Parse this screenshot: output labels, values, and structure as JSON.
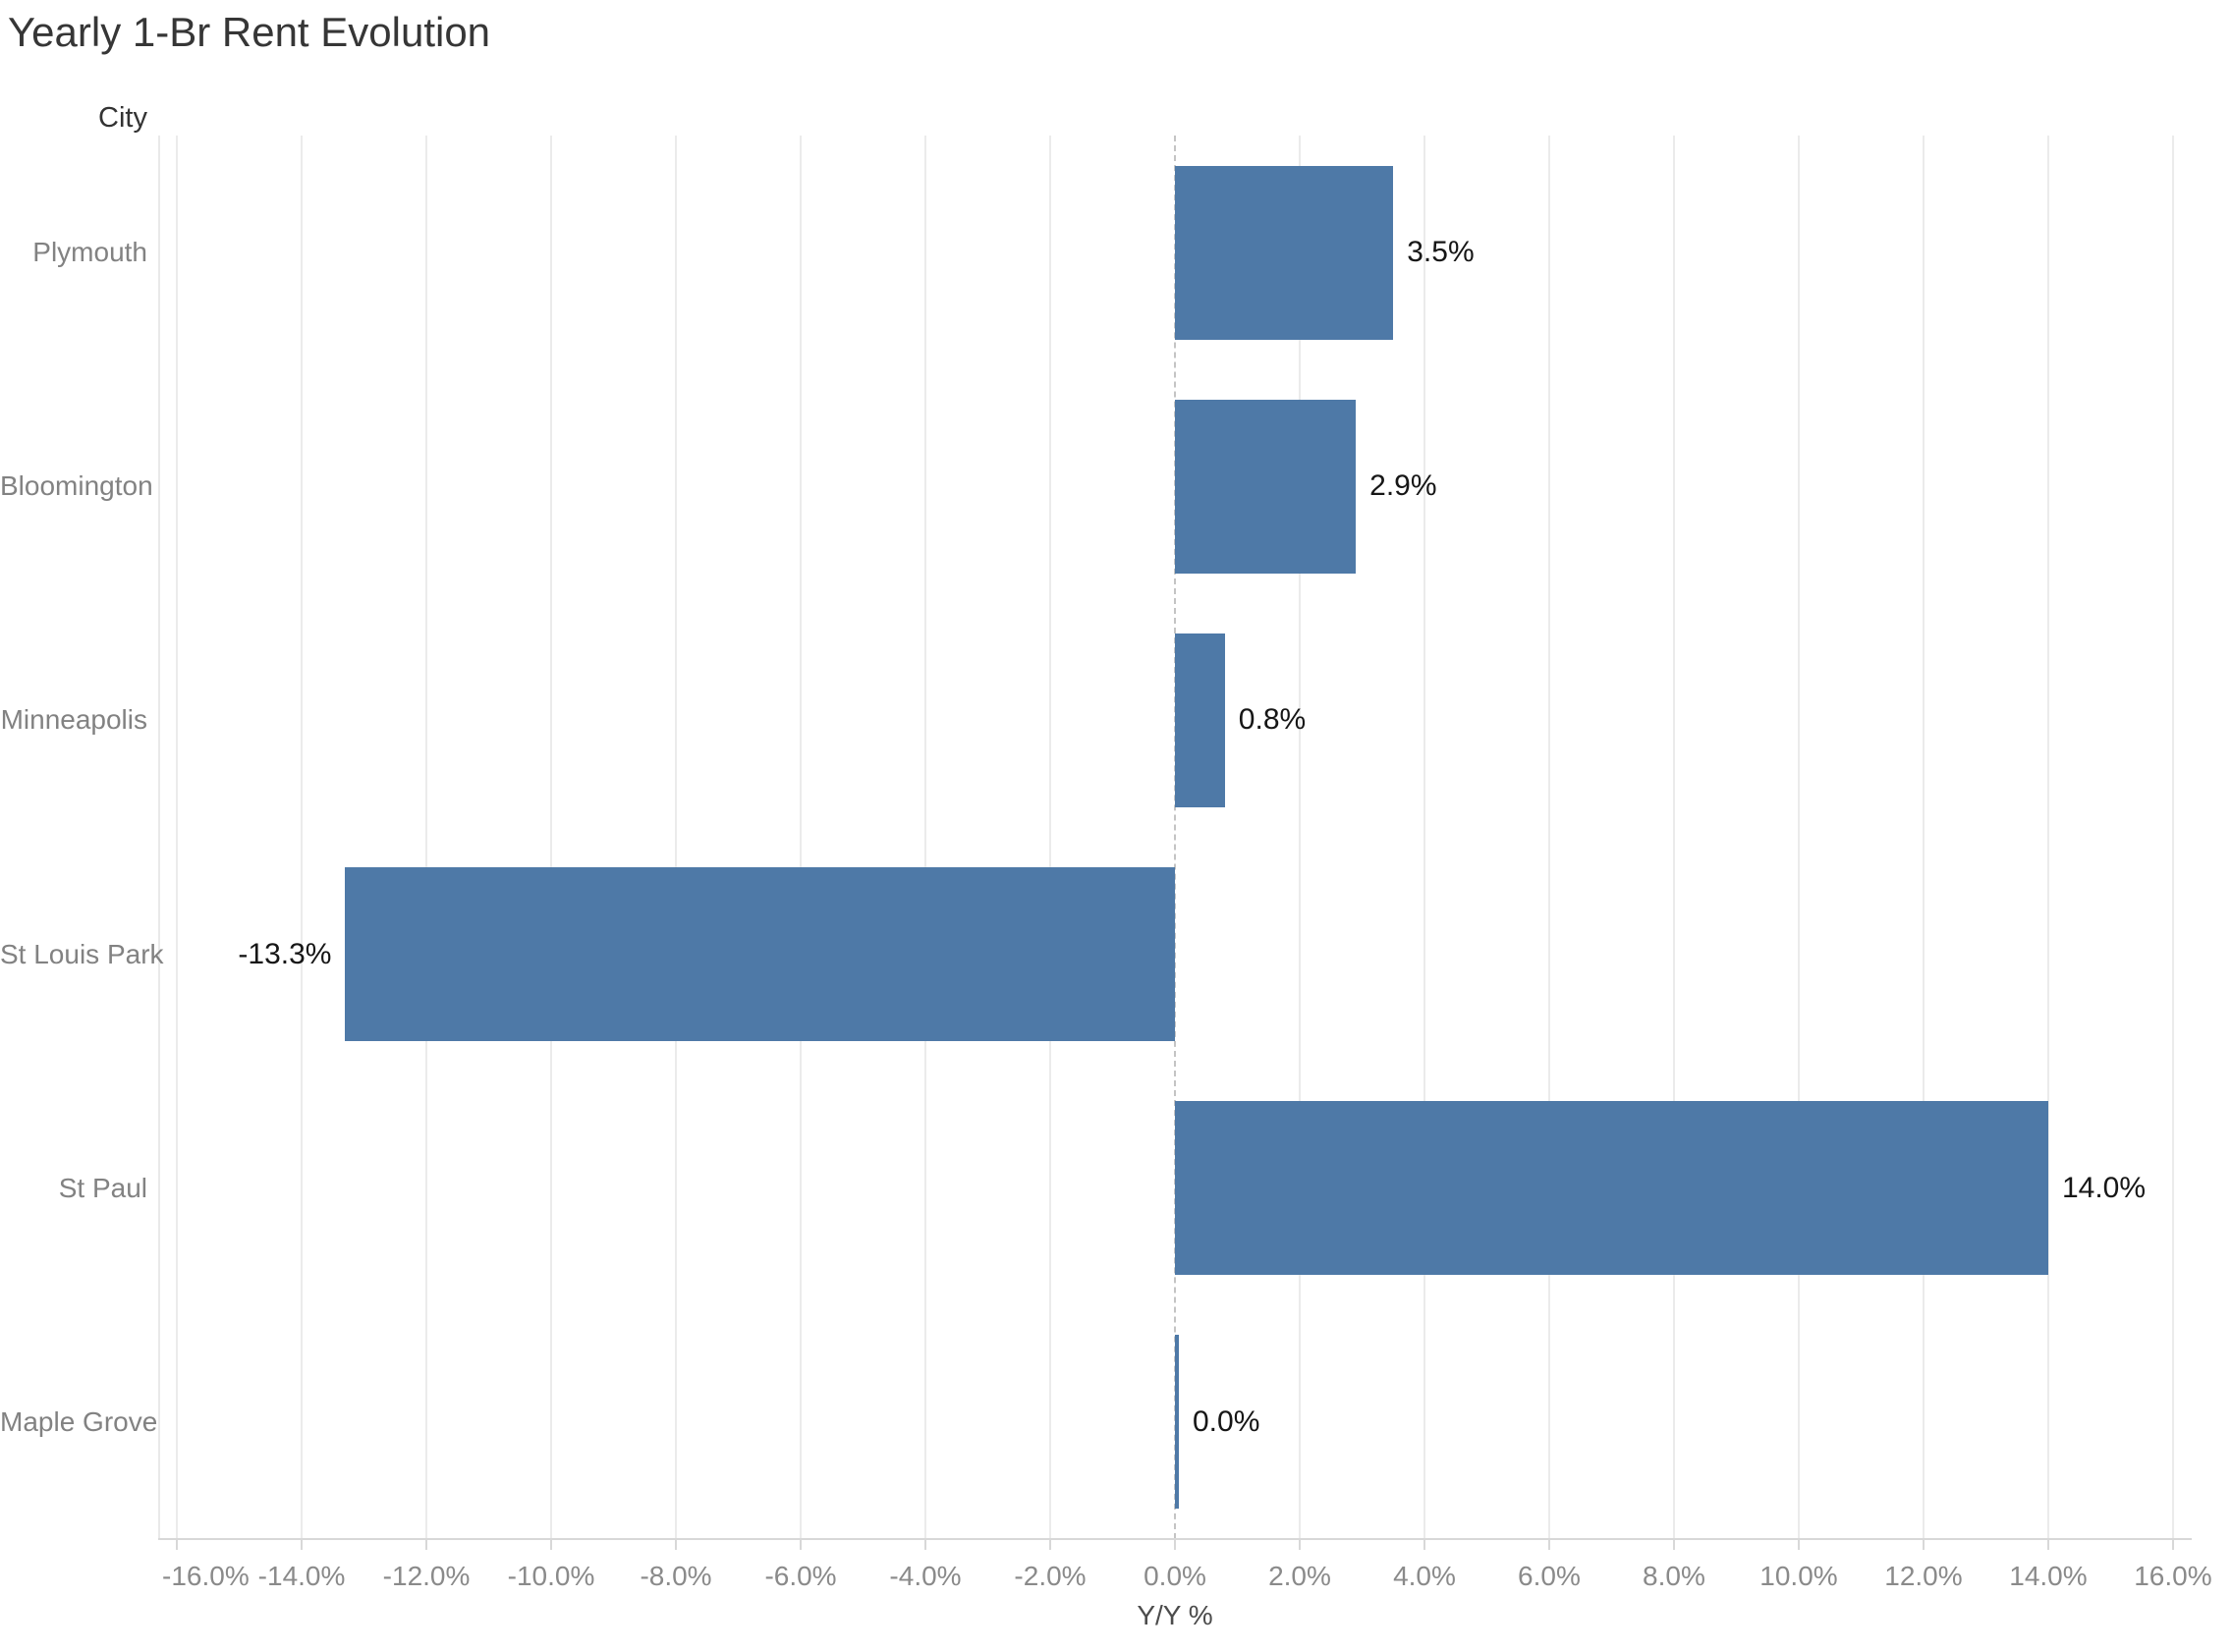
{
  "chart_data": {
    "type": "bar",
    "orientation": "horizontal",
    "title": "Yearly 1-Br Rent Evolution",
    "categories_label": "City",
    "categories": [
      "Plymouth",
      "Bloomington",
      "Minneapolis",
      "St Louis Park",
      "St Paul",
      "Maple Grove"
    ],
    "values": [
      3.5,
      2.9,
      0.8,
      -13.3,
      14.0,
      0.0
    ],
    "value_labels": [
      "3.5%",
      "2.9%",
      "0.8%",
      "-13.3%",
      "14.0%",
      "0.0%"
    ],
    "xlabel": "Y/Y %",
    "xlim": [
      -16.3,
      16.3
    ],
    "x_ticks": [
      -16,
      -14,
      -12,
      -10,
      -8,
      -6,
      -4,
      -2,
      0,
      2,
      4,
      6,
      8,
      10,
      12,
      14,
      16
    ],
    "x_tick_labels": [
      "-16.0%",
      "-14.0%",
      "-12.0%",
      "-10.0%",
      "-8.0%",
      "-6.0%",
      "-4.0%",
      "-2.0%",
      "0.0%",
      "2.0%",
      "4.0%",
      "6.0%",
      "8.0%",
      "10.0%",
      "12.0%",
      "14.0%",
      "16.0%"
    ],
    "grid": "vertical",
    "legend": "none",
    "colors": {
      "bar": "#4e79a7",
      "gridline": "#ebebeb",
      "zero_line": "#c4c4c4",
      "axis_line": "#d8d8d8",
      "title_text": "#363636",
      "category_text": "#828282",
      "tick_text": "#8a8a8a",
      "value_text": "#161616"
    }
  }
}
